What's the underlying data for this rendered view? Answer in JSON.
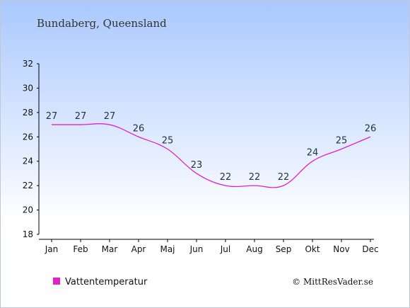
{
  "chart_data": {
    "type": "line",
    "title": "Bundaberg, Queensland",
    "categories": [
      "Jan",
      "Feb",
      "Mar",
      "Apr",
      "Maj",
      "Jun",
      "Jul",
      "Aug",
      "Sep",
      "Okt",
      "Nov",
      "Dec"
    ],
    "series": [
      {
        "name": "Vattentemperatur",
        "values": [
          27,
          27,
          27,
          26,
          25,
          23,
          22,
          22,
          22,
          24,
          25,
          26
        ],
        "color": "#dd22cc"
      }
    ],
    "ylim": [
      18,
      32
    ],
    "yticks": [
      18,
      20,
      22,
      24,
      26,
      28,
      30,
      32
    ],
    "xlabel": "",
    "ylabel": "",
    "grid": false,
    "legend_position": "bottom-left"
  },
  "credit": "© MittResVader.se",
  "colors": {
    "background_top": "#a9c8ff",
    "background_bottom": "#ffffff",
    "axis": "#000000",
    "label": "#223344"
  }
}
